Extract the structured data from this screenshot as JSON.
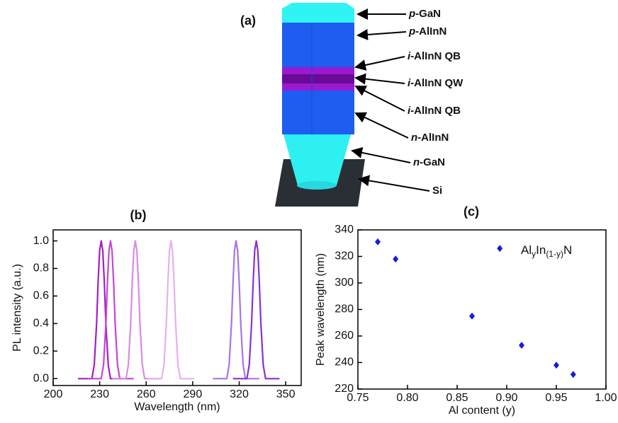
{
  "diagram": {
    "title": "(a)",
    "labels": [
      {
        "prefix": "p",
        "rest": "-GaN"
      },
      {
        "prefix": "p",
        "rest": "-AlInN"
      },
      {
        "prefix": "i",
        "rest": "-AlInN QB"
      },
      {
        "prefix": "i",
        "rest": "-AlInN QW"
      },
      {
        "prefix": "i",
        "rest": "-AlInN QB"
      },
      {
        "prefix": "n",
        "rest": "-AlInN"
      },
      {
        "prefix": "n",
        "rest": "-GaN"
      },
      {
        "prefix": "",
        "rest": "Si"
      }
    ]
  },
  "chart_data": [
    {
      "type": "line",
      "title": "(b)",
      "xlabel": "Wavelength (nm)",
      "ylabel": "PL intensity (a.u.)",
      "xlim": [
        200,
        360
      ],
      "xticks": [
        200,
        230,
        260,
        290,
        320,
        350
      ],
      "ylim": [
        -0.05,
        1.08
      ],
      "yticks": [
        {
          "value": 0,
          "label": "0.0"
        },
        0.2,
        0.4,
        0.6,
        0.8,
        {
          "value": 1,
          "label": "1.0"
        }
      ],
      "series": [
        {
          "color": "#a21fc4",
          "x": [
            216,
            225,
            226.5,
            228,
            229,
            230,
            231,
            232,
            233,
            234,
            235.5,
            237,
            246
          ],
          "values": [
            0,
            0,
            0.1,
            0.4,
            0.7,
            0.93,
            1,
            0.93,
            0.7,
            0.4,
            0.1,
            0,
            0
          ]
        },
        {
          "color": "#c645d6",
          "x": [
            222,
            231,
            232.5,
            234,
            235,
            236,
            237,
            238,
            239,
            240,
            241.5,
            243,
            252
          ],
          "values": [
            0,
            0,
            0.1,
            0.4,
            0.7,
            0.93,
            1,
            0.93,
            0.7,
            0.4,
            0.1,
            0,
            0
          ]
        },
        {
          "color": "#d98be6",
          "x": [
            238,
            247,
            248.5,
            250,
            251,
            252,
            253,
            254,
            255,
            256,
            257.5,
            259,
            268
          ],
          "values": [
            0,
            0,
            0.1,
            0.4,
            0.7,
            0.93,
            1,
            0.93,
            0.7,
            0.4,
            0.1,
            0,
            0
          ]
        },
        {
          "color": "#e6b0ee",
          "x": [
            261,
            270,
            271.5,
            273,
            274,
            275,
            276,
            277,
            278,
            279,
            280.5,
            282,
            291
          ],
          "values": [
            0,
            0,
            0.1,
            0.4,
            0.7,
            0.93,
            1,
            0.93,
            0.7,
            0.4,
            0.1,
            0,
            0
          ]
        },
        {
          "color": "#a874e6",
          "x": [
            303,
            312,
            313.5,
            315,
            316,
            317,
            318,
            319,
            320,
            321,
            322.5,
            324,
            333
          ],
          "values": [
            0,
            0,
            0.1,
            0.4,
            0.7,
            0.93,
            1,
            0.93,
            0.7,
            0.4,
            0.1,
            0,
            0
          ]
        },
        {
          "color": "#8a2fd6",
          "x": [
            316,
            325,
            326.5,
            328,
            329,
            330,
            331,
            332,
            333,
            334,
            335.5,
            337,
            346
          ],
          "values": [
            0,
            0,
            0.1,
            0.4,
            0.7,
            0.93,
            1,
            0.93,
            0.7,
            0.4,
            0.1,
            0,
            0
          ]
        }
      ]
    },
    {
      "type": "scatter",
      "title": "(c)",
      "xlabel": "Al content (y)",
      "ylabel": "Peak wavelength (nm)",
      "annotation": [
        {
          "text": "Al"
        },
        {
          "text": "y",
          "sub": true
        },
        {
          "text": "In"
        },
        {
          "text": "(1-y)",
          "sub": true
        },
        {
          "text": "N"
        }
      ],
      "xlim": [
        0.75,
        1.0
      ],
      "xticks": [
        0.75,
        {
          "value": 0.8,
          "label": "0.80"
        },
        0.85,
        {
          "value": 0.9,
          "label": "0.90"
        },
        0.95,
        {
          "value": 1.0,
          "label": "1.00"
        }
      ],
      "ylim": [
        220,
        340
      ],
      "yticks": [
        220,
        240,
        260,
        280,
        300,
        320,
        340
      ],
      "color": "#1b1bd8",
      "x": [
        0.77,
        0.788,
        0.865,
        0.893,
        0.915,
        0.95,
        0.967
      ],
      "values": [
        331,
        318,
        275,
        326,
        253,
        238,
        231
      ]
    }
  ]
}
